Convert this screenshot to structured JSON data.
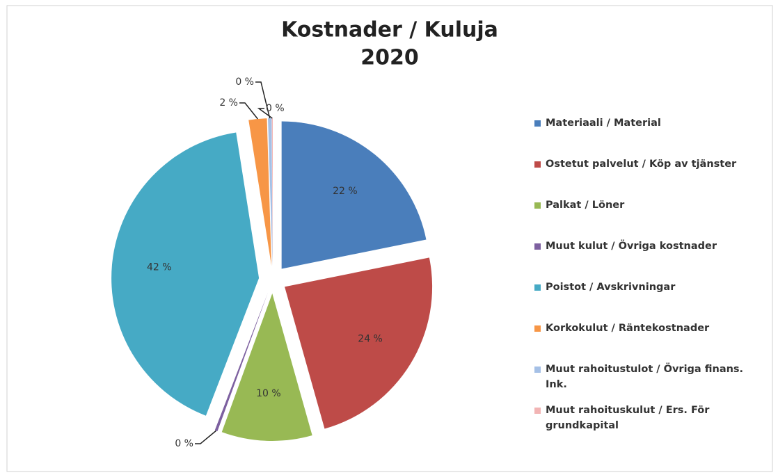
{
  "chart_data": {
    "type": "pie",
    "title": "Kostnader / Kuluja",
    "subtitle": "2020",
    "categories": [
      "Materiaali / Material",
      "Ostetut palvelut / Köp av tjänster",
      "Palkat / Löner",
      "Muut kulut / Övriga kostnader",
      "Poistot / Avskrivningar",
      "Korkokulut / Räntekostnader",
      "Muut rahoitustulot / Övriga finans. Ink.",
      "Muut rahoituskulut / Ers. För grundkapital"
    ],
    "values": [
      22,
      24,
      10,
      0.3,
      42,
      2,
      0.4,
      0.1
    ],
    "value_labels": [
      "22 %",
      "24 %",
      "10 %",
      "0 %",
      "42 %",
      "2 %",
      "0 %",
      "0 %"
    ],
    "colors": [
      "#4a7ebb",
      "#be4b48",
      "#98b954",
      "#7d60a0",
      "#46aac5",
      "#f79646",
      "#a5c0e6",
      "#f2b4b4"
    ],
    "legend": "right"
  }
}
